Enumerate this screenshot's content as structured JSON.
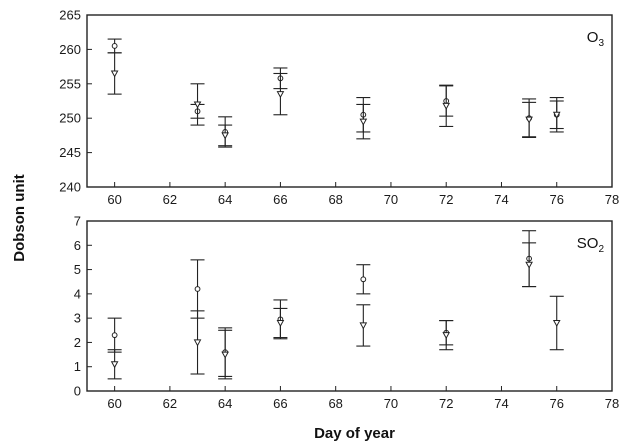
{
  "chart_data": [
    {
      "type": "scatter",
      "panel_tag": "O",
      "panel_tag_sub": "3",
      "xlim": [
        59,
        78
      ],
      "ylim": [
        240,
        265
      ],
      "xticks": [
        60,
        62,
        64,
        66,
        68,
        70,
        72,
        74,
        76,
        78
      ],
      "yticks": [
        240,
        245,
        250,
        255,
        260,
        265
      ],
      "grid": false,
      "series": [
        {
          "marker": "circle",
          "x": [
            60,
            63,
            64,
            66,
            69,
            72,
            75,
            76
          ],
          "y": [
            260.5,
            251.0,
            248.0,
            255.8,
            250.5,
            252.5,
            250.0,
            250.5
          ],
          "err": [
            1.0,
            1.0,
            2.2,
            1.5,
            2.5,
            2.2,
            2.8,
            2.0
          ]
        },
        {
          "marker": "triangle-down",
          "x": [
            60,
            63,
            64,
            66,
            69,
            72,
            75,
            76
          ],
          "y": [
            256.5,
            252.0,
            247.5,
            253.5,
            249.5,
            251.8,
            249.8,
            250.5
          ],
          "err": [
            3.0,
            3.0,
            1.5,
            3.0,
            2.5,
            3.0,
            2.5,
            2.5
          ]
        }
      ]
    },
    {
      "type": "scatter",
      "panel_tag": "SO",
      "panel_tag_sub": "2",
      "xlabel": "Day of year",
      "xlim": [
        59,
        78
      ],
      "ylim": [
        0,
        7
      ],
      "xticks": [
        60,
        62,
        64,
        66,
        68,
        70,
        72,
        74,
        76,
        78
      ],
      "yticks": [
        0,
        1,
        2,
        3,
        4,
        5,
        6,
        7
      ],
      "grid": false,
      "series": [
        {
          "marker": "circle",
          "x": [
            60,
            63,
            64,
            66,
            69,
            72,
            75
          ],
          "y": [
            2.3,
            4.2,
            1.6,
            2.95,
            4.6,
            2.4,
            5.45
          ],
          "err": [
            0.7,
            1.2,
            1.0,
            0.8,
            0.6,
            0.5,
            1.15
          ]
        },
        {
          "marker": "triangle-down",
          "x": [
            60,
            63,
            64,
            66,
            69,
            72,
            75,
            76
          ],
          "y": [
            1.1,
            2.0,
            1.5,
            2.8,
            2.7,
            2.3,
            5.2,
            2.8
          ],
          "err": [
            0.6,
            1.3,
            1.0,
            0.6,
            0.85,
            0.6,
            0.9,
            1.1
          ]
        }
      ]
    }
  ],
  "ylabel": "Dobson unit"
}
